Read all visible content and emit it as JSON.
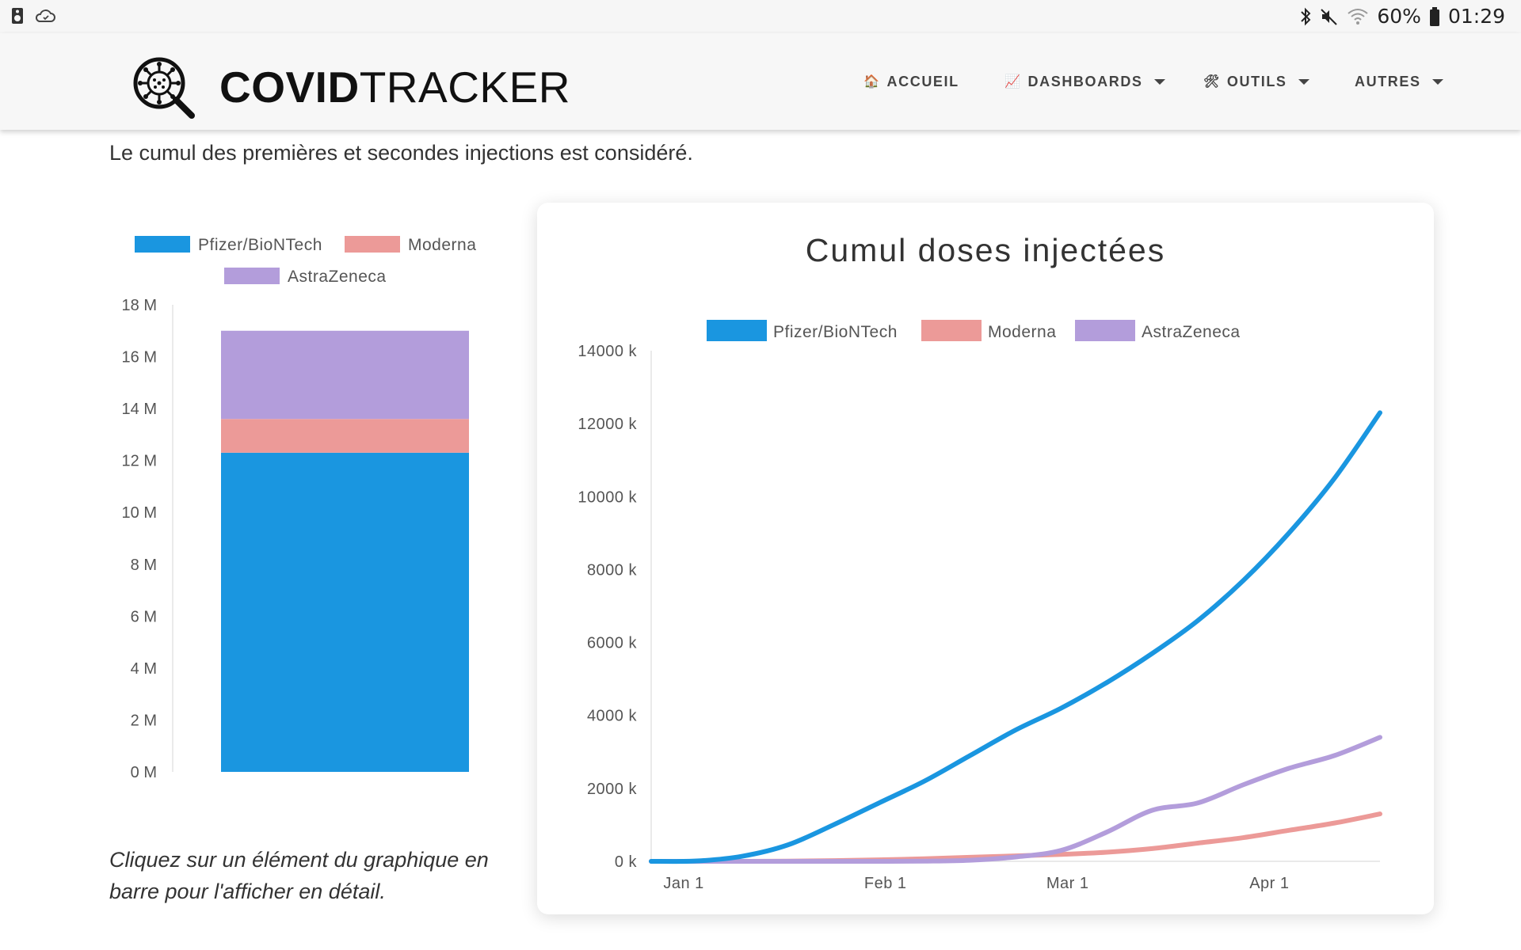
{
  "status_bar": {
    "battery": "60%",
    "time": "01:29"
  },
  "brand": {
    "bold": "COVID",
    "light": "TRACKER"
  },
  "nav": {
    "items": [
      {
        "icon": "🏠",
        "label": "ACCUEIL",
        "dropdown": false
      },
      {
        "icon": "📈",
        "label": "DASHBOARDS",
        "dropdown": true
      },
      {
        "icon": "🛠",
        "label": "OUTILS",
        "dropdown": true
      },
      {
        "icon": "",
        "label": "AUTRES",
        "dropdown": true
      }
    ]
  },
  "intro_text": "Le cumul des premières et secondes injections est considéré.",
  "hint_text": "Cliquez sur un élément du graphique en barre pour l'afficher en détail.",
  "colors": {
    "pfizer": "#1a96e0",
    "moderna": "#ec9a98",
    "astrazeneca": "#b39ddb"
  },
  "chart_data": [
    {
      "type": "bar",
      "stacked": true,
      "categories": [
        ""
      ],
      "series": [
        {
          "name": "Pfizer/BioNTech",
          "values": [
            12.3
          ]
        },
        {
          "name": "Moderna",
          "values": [
            1.3
          ]
        },
        {
          "name": "AstraZeneca",
          "values": [
            3.4
          ]
        }
      ],
      "ylim": [
        0,
        18
      ],
      "yticks": [
        "0 M",
        "2 M",
        "4 M",
        "6 M",
        "8 M",
        "10 M",
        "12 M",
        "14 M",
        "16 M",
        "18 M"
      ],
      "legend": "top",
      "title": ""
    },
    {
      "type": "line",
      "title": "Cumul doses injectées",
      "legend": "top",
      "ylim": [
        0,
        14000
      ],
      "yticks": [
        "0 k",
        "2000 k",
        "4000 k",
        "6000 k",
        "8000 k",
        "10000 k",
        "12000 k",
        "14000 k"
      ],
      "xticks": [
        "Jan 1",
        "Feb 1",
        "Mar 1",
        "Apr 1"
      ],
      "x": [
        "2020-12-27",
        "2021-01-03",
        "2021-01-10",
        "2021-01-17",
        "2021-01-24",
        "2021-01-31",
        "2021-02-07",
        "2021-02-14",
        "2021-02-21",
        "2021-02-28",
        "2021-03-07",
        "2021-03-14",
        "2021-03-21",
        "2021-03-28",
        "2021-04-04",
        "2021-04-11",
        "2021-04-18"
      ],
      "series": [
        {
          "name": "Pfizer/BioNTech",
          "values": [
            0,
            10,
            140,
            450,
            1000,
            1600,
            2200,
            2900,
            3600,
            4200,
            4900,
            5700,
            6600,
            7700,
            9000,
            10500,
            12300
          ]
        },
        {
          "name": "Moderna",
          "values": [
            0,
            0,
            0,
            5,
            20,
            40,
            70,
            110,
            150,
            190,
            250,
            350,
            500,
            650,
            850,
            1050,
            1300
          ]
        },
        {
          "name": "AstraZeneca",
          "values": [
            0,
            0,
            0,
            0,
            0,
            0,
            5,
            30,
            120,
            300,
            800,
            1400,
            1600,
            2100,
            2550,
            2900,
            3400
          ]
        }
      ]
    }
  ]
}
